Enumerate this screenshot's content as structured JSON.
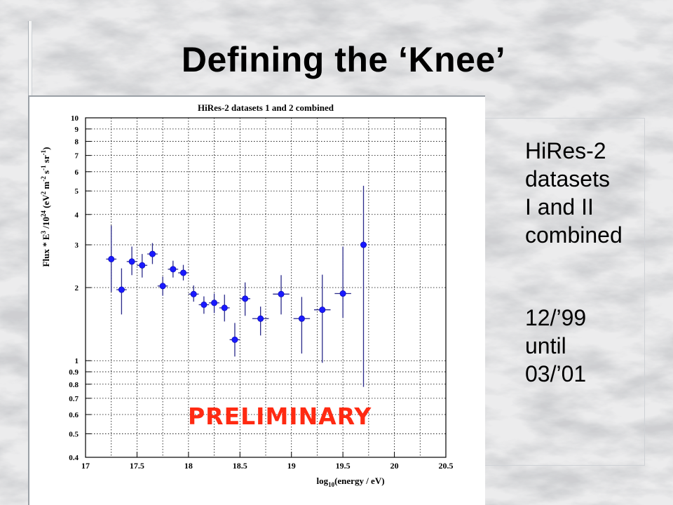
{
  "slide": {
    "title": "Defining the ‘Knee’",
    "side_text": [
      "HiRes-2",
      "datasets",
      "I and II",
      "combined"
    ],
    "date_text": [
      "12/’99",
      "until",
      "03/’01"
    ],
    "stamp": "PRELIMINARY"
  },
  "colors": {
    "marker": "#1a1aff",
    "errorbar": "#2a2a8a",
    "grid": "#000000",
    "stamp": "#ff2a12"
  },
  "chart_data": {
    "type": "scatter",
    "title": "HiRes-2 datasets 1 and 2 combined",
    "xlabel": "log10(energy / eV)",
    "ylabel": "Flux * E^3 / 10^24 (eV^2 m^-2 s^-1 sr^-1)",
    "xlim": [
      17,
      20.5
    ],
    "ylim": [
      0.4,
      10
    ],
    "yscale": "log",
    "grid": true,
    "xticks": [
      17,
      17.5,
      18,
      18.5,
      19,
      19.5,
      20,
      20.5
    ],
    "xtick_labels": [
      "17",
      "17.5",
      "18",
      "18.5",
      "19",
      "19.5",
      "20",
      "20.5"
    ],
    "yticks": [
      0.4,
      0.5,
      0.6,
      0.7,
      0.8,
      0.9,
      1,
      2,
      3,
      4,
      5,
      6,
      7,
      8,
      9,
      10
    ],
    "ytick_labels": [
      "0.4",
      "0.5",
      "0.6",
      "0.7",
      "0.8",
      "0.9",
      "1",
      "2",
      "3",
      "4",
      "5",
      "6",
      "7",
      "8",
      "9",
      "10"
    ],
    "series": [
      {
        "points": [
          {
            "x": 17.25,
            "y": 2.62,
            "ylo": 1.92,
            "yhi": 3.6,
            "xerr": 0.05
          },
          {
            "x": 17.35,
            "y": 1.96,
            "ylo": 1.55,
            "yhi": 2.4,
            "xerr": 0.05
          },
          {
            "x": 17.45,
            "y": 2.56,
            "ylo": 2.25,
            "yhi": 2.95,
            "xerr": 0.05
          },
          {
            "x": 17.55,
            "y": 2.47,
            "ylo": 2.2,
            "yhi": 2.75,
            "xerr": 0.05
          },
          {
            "x": 17.65,
            "y": 2.75,
            "ylo": 2.5,
            "yhi": 3.05,
            "xerr": 0.05
          },
          {
            "x": 17.75,
            "y": 2.03,
            "ylo": 1.85,
            "yhi": 2.22,
            "xerr": 0.05
          },
          {
            "x": 17.85,
            "y": 2.38,
            "ylo": 2.2,
            "yhi": 2.58,
            "xerr": 0.05
          },
          {
            "x": 17.95,
            "y": 2.3,
            "ylo": 2.14,
            "yhi": 2.48,
            "xerr": 0.05
          },
          {
            "x": 18.05,
            "y": 1.88,
            "ylo": 1.75,
            "yhi": 2.04,
            "xerr": 0.05
          },
          {
            "x": 18.15,
            "y": 1.7,
            "ylo": 1.56,
            "yhi": 1.84,
            "xerr": 0.05
          },
          {
            "x": 18.25,
            "y": 1.73,
            "ylo": 1.57,
            "yhi": 1.89,
            "xerr": 0.05
          },
          {
            "x": 18.35,
            "y": 1.65,
            "ylo": 1.45,
            "yhi": 1.87,
            "xerr": 0.05
          },
          {
            "x": 18.45,
            "y": 1.22,
            "ylo": 1.04,
            "yhi": 1.43,
            "xerr": 0.05
          },
          {
            "x": 18.55,
            "y": 1.8,
            "ylo": 1.53,
            "yhi": 2.1,
            "xerr": 0.05
          },
          {
            "x": 18.7,
            "y": 1.49,
            "ylo": 1.27,
            "yhi": 1.67,
            "xerr": 0.08
          },
          {
            "x": 18.9,
            "y": 1.88,
            "ylo": 1.55,
            "yhi": 2.25,
            "xerr": 0.08
          },
          {
            "x": 19.1,
            "y": 1.49,
            "ylo": 1.07,
            "yhi": 1.83,
            "xerr": 0.08
          },
          {
            "x": 19.3,
            "y": 1.62,
            "ylo": 0.98,
            "yhi": 2.26,
            "xerr": 0.08
          },
          {
            "x": 19.5,
            "y": 1.89,
            "ylo": 1.5,
            "yhi": 2.95,
            "xerr": 0.08
          },
          {
            "x": 19.7,
            "y": 3.0,
            "ylo": 0.78,
            "yhi": 5.25,
            "xerr": 0.0
          }
        ]
      }
    ]
  }
}
